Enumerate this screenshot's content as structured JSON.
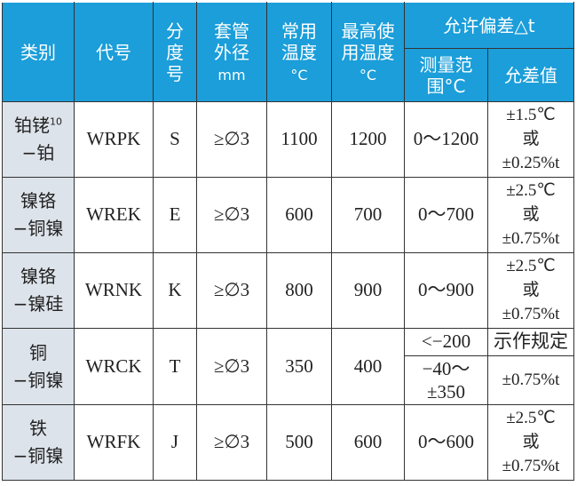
{
  "header": {
    "category": "类别",
    "code": "代号",
    "graduation": [
      "分",
      "度",
      "号"
    ],
    "sheath": [
      "套管",
      "外径",
      "mm"
    ],
    "normal_temp": [
      "常用",
      "温度",
      "°C"
    ],
    "max_temp": [
      "最高使",
      "用温度",
      "°C"
    ],
    "tolerance": "允许偏差△t",
    "range": [
      "测量范",
      "围°C"
    ],
    "tolerance_value": "允差值"
  },
  "rows": [
    {
      "category": [
        "铂铑",
        "10",
        "−铂"
      ],
      "code": "WRPK",
      "grad": "S",
      "sheath": "≥∅3",
      "normal": "1100",
      "max": "1200",
      "range": "0～1200",
      "tol": [
        "±1.5℃",
        "或",
        "±0.25%t"
      ]
    },
    {
      "category": [
        "镍铬",
        "",
        "−铜镍"
      ],
      "code": "WREK",
      "grad": "E",
      "sheath": "≥∅3",
      "normal": "600",
      "max": "700",
      "range": "0～700",
      "tol": [
        "±2.5℃",
        "或",
        "±0.75%t"
      ]
    },
    {
      "category": [
        "镍铬",
        "",
        "−镍硅"
      ],
      "code": "WRNK",
      "grad": "K",
      "sheath": "≥∅3",
      "normal": "800",
      "max": "900",
      "range": "0～900",
      "tol": [
        "±2.5℃",
        "或",
        "±0.75%t"
      ]
    },
    {
      "category": [
        "铜",
        "",
        "−铜镍"
      ],
      "code": "WRCK",
      "grad": "T",
      "sheath": "≥∅3",
      "normal": "350",
      "max": "400",
      "range_a": "<−200",
      "tol_a": "示作规定",
      "range_b": [
        "−40～",
        "±350"
      ],
      "tol_b": "±0.75%t"
    },
    {
      "category": [
        "铁",
        "",
        "−铜镍"
      ],
      "code": "WRFK",
      "grad": "J",
      "sheath": "≥∅3",
      "normal": "500",
      "max": "600",
      "range": "0～600",
      "tol": [
        "±2.5℃",
        "或",
        "±0.75%t"
      ]
    }
  ],
  "colors": {
    "header_bg": "#1b9ed9",
    "category_bg": "#dde3ea"
  }
}
